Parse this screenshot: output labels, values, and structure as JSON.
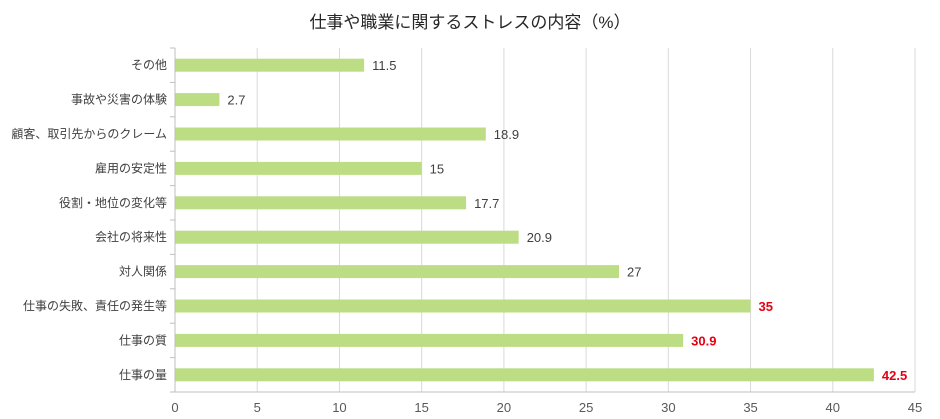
{
  "chart_data": {
    "type": "bar",
    "orientation": "horizontal",
    "title": "仕事や職業に関するストレスの内容（%）",
    "categories": [
      "その他",
      "事故や災害の体験",
      "顧客、取引先からのクレーム",
      "雇用の安定性",
      "役割・地位の変化等",
      "会社の将来性",
      "対人関係",
      "仕事の失敗、責任の発生等",
      "仕事の質",
      "仕事の量"
    ],
    "values": [
      11.5,
      2.7,
      18.9,
      15,
      17.7,
      20.9,
      27,
      35,
      30.9,
      42.5
    ],
    "highlighted": [
      false,
      false,
      false,
      false,
      false,
      false,
      false,
      true,
      true,
      true
    ],
    "xlim": [
      0,
      45
    ],
    "xticks": [
      0,
      5,
      10,
      15,
      20,
      25,
      30,
      35,
      40,
      45
    ],
    "grid": true,
    "legend": "none"
  },
  "colors": {
    "bar": "#bddd84",
    "label": "#404040",
    "highlight_label": "#e60012",
    "grid": "#d9d9d9",
    "axis": "#bfbfbf"
  }
}
